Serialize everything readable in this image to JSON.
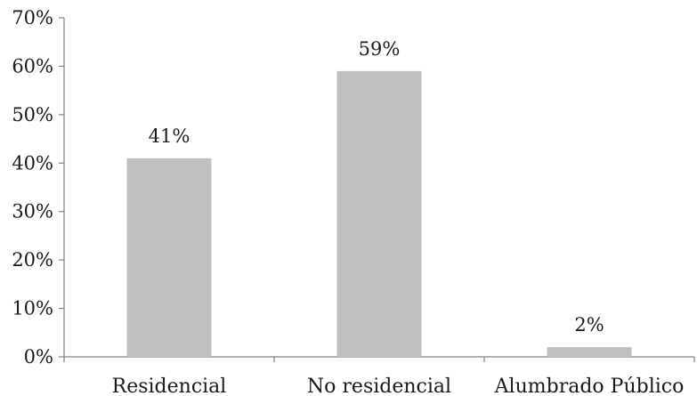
{
  "chart_data": {
    "type": "bar",
    "categories": [
      "Residencial",
      "No residencial",
      "Alumbrado Público"
    ],
    "values": [
      41,
      59,
      2
    ],
    "data_labels": [
      "41%",
      "59%",
      "2%"
    ],
    "ylim": [
      0,
      70
    ],
    "yticks": [
      0,
      10,
      20,
      30,
      40,
      50,
      60,
      70
    ],
    "ytick_labels": [
      "0%",
      "10%",
      "20%",
      "30%",
      "40%",
      "50%",
      "60%",
      "70%"
    ],
    "title": "",
    "xlabel": "",
    "ylabel": "",
    "grid": false,
    "legend": "none",
    "colors": {
      "bar": "#c0c0c0",
      "axis": "#808080",
      "text": "#1a1a1a"
    }
  }
}
